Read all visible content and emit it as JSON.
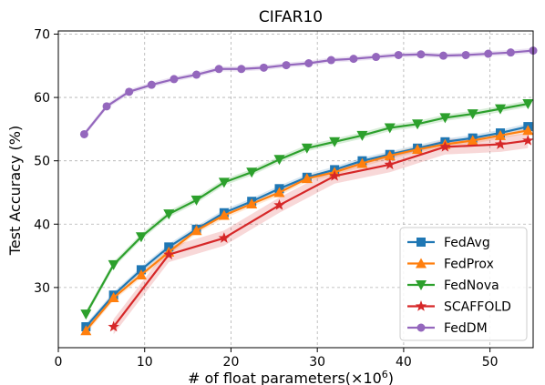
{
  "chart_data": {
    "type": "line",
    "title": "CIFAR10",
    "xlabel": "# of float parameters(×10",
    "xlabel_sup": "6",
    "xlabel_close": ")",
    "ylabel": "Test Accuracy (%)",
    "xlim": [
      0,
      55
    ],
    "ylim": [
      20.5,
      70.5
    ],
    "xticks": [
      0,
      10,
      20,
      30,
      40,
      50
    ],
    "yticks": [
      30,
      40,
      50,
      60,
      70
    ],
    "grid": true,
    "grid_style": "dashed",
    "legend_position": "lower-right",
    "series": [
      {
        "name": "FedAvg",
        "color": "#1f77b4",
        "marker": "square",
        "x": [
          3.2,
          6.4,
          9.6,
          12.8,
          16.0,
          19.2,
          22.4,
          25.6,
          28.8,
          32.0,
          35.2,
          38.4,
          41.6,
          44.8,
          48.0,
          51.2,
          54.4
        ],
        "y": [
          23.8,
          28.8,
          32.8,
          36.4,
          39.2,
          41.8,
          43.6,
          45.6,
          47.4,
          48.6,
          50.0,
          51.0,
          52.0,
          53.0,
          53.6,
          54.4,
          55.4
        ],
        "band": 0.5
      },
      {
        "name": "FedProx",
        "color": "#ff7f0e",
        "marker": "triangle-up",
        "x": [
          3.2,
          6.4,
          9.6,
          12.8,
          16.0,
          19.2,
          22.4,
          25.6,
          28.8,
          32.0,
          35.2,
          38.4,
          41.6,
          44.8,
          48.0,
          51.2,
          54.4
        ],
        "y": [
          23.2,
          28.4,
          32.0,
          35.6,
          39.0,
          41.4,
          43.2,
          45.0,
          47.2,
          48.2,
          49.6,
          50.8,
          51.8,
          52.6,
          53.2,
          54.0,
          54.8
        ],
        "band": 0.5
      },
      {
        "name": "FedNova",
        "color": "#2ca02c",
        "marker": "triangle-down",
        "x": [
          3.2,
          6.4,
          9.6,
          12.8,
          16.0,
          19.2,
          22.4,
          25.6,
          28.8,
          32.0,
          35.2,
          38.4,
          41.6,
          44.8,
          48.0,
          51.2,
          54.4
        ],
        "y": [
          25.8,
          33.6,
          38.0,
          41.6,
          43.8,
          46.6,
          48.2,
          50.2,
          52.0,
          53.0,
          54.0,
          55.2,
          55.8,
          56.8,
          57.4,
          58.2,
          59.0
        ],
        "band": 0.5
      },
      {
        "name": "SCAFFOLD",
        "color": "#d62728",
        "marker": "star",
        "x": [
          6.4,
          12.8,
          19.2,
          25.6,
          32.0,
          38.4,
          44.8,
          51.2,
          54.4
        ],
        "y": [
          23.8,
          35.2,
          37.8,
          43.0,
          47.6,
          49.4,
          52.2,
          52.6,
          53.2
        ],
        "band": 1.2
      },
      {
        "name": "FedDM",
        "color": "#9467bd",
        "marker": "circle",
        "x": [
          3.0,
          5.6,
          8.2,
          10.8,
          13.4,
          16.0,
          18.6,
          21.2,
          23.8,
          26.4,
          29.0,
          31.6,
          34.2,
          36.8,
          39.4,
          42.0,
          44.6,
          47.2,
          49.8,
          52.4,
          55.0
        ],
        "y": [
          54.2,
          58.6,
          60.9,
          62.0,
          62.9,
          63.6,
          64.5,
          64.5,
          64.7,
          65.1,
          65.4,
          65.9,
          66.1,
          66.4,
          66.7,
          66.8,
          66.6,
          66.7,
          66.9,
          67.1,
          67.4
        ],
        "band": 0.4
      }
    ]
  }
}
